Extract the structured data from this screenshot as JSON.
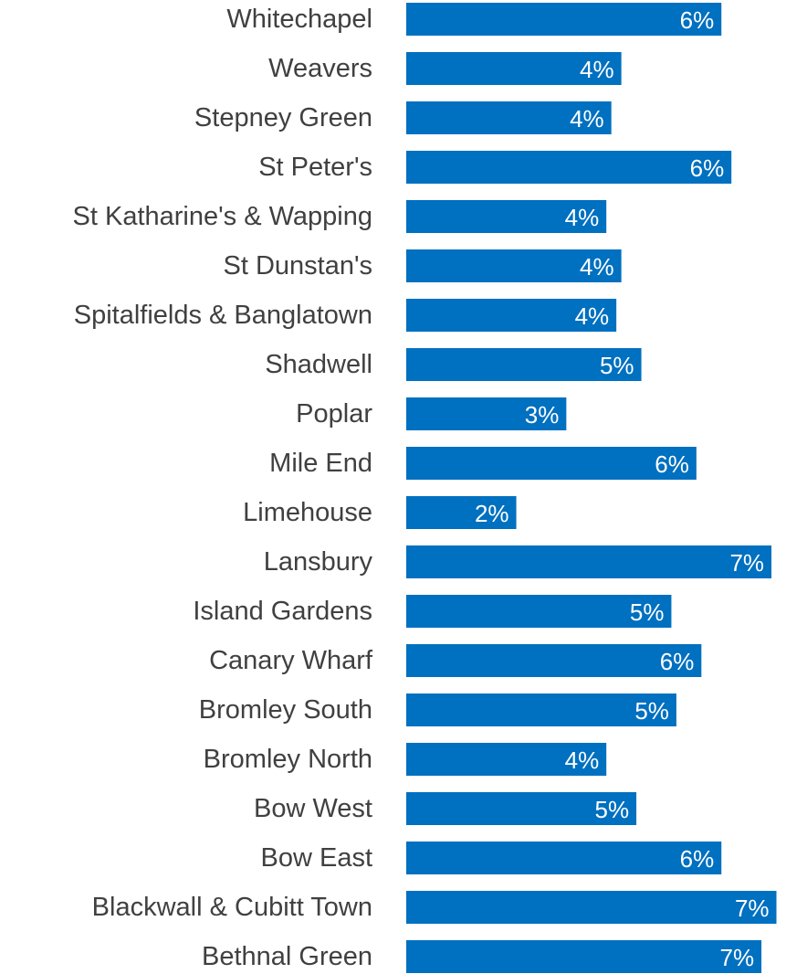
{
  "chart_data": {
    "type": "bar",
    "orientation": "horizontal",
    "title": "",
    "xlabel": "",
    "ylabel": "",
    "grid": false,
    "legend": "none",
    "bar_color": "#0070C0",
    "value_label_color": "#ffffff",
    "category_label_color": "#404040",
    "categories": [
      "Whitechapel",
      "Weavers",
      "Stepney Green",
      "St Peter's",
      "St Katharine's & Wapping",
      "St Dunstan's",
      "Spitalfields & Banglatown",
      "Shadwell",
      "Poplar",
      "Mile End",
      "Limehouse",
      "Lansbury",
      "Island Gardens",
      "Canary Wharf",
      "Bromley South",
      "Bromley North",
      "Bow West",
      "Bow East",
      "Blackwall & Cubitt Town",
      "Bethnal Green"
    ],
    "values": [
      6.3,
      4.3,
      4.1,
      6.5,
      4.0,
      4.3,
      4.2,
      4.7,
      3.2,
      5.8,
      2.2,
      7.3,
      5.3,
      5.9,
      5.4,
      4.0,
      4.6,
      6.3,
      7.4,
      7.1
    ],
    "data_labels": [
      "6%",
      "4%",
      "4%",
      "6%",
      "4%",
      "4%",
      "4%",
      "5%",
      "3%",
      "6%",
      "2%",
      "7%",
      "5%",
      "6%",
      "5%",
      "4%",
      "5%",
      "6%",
      "7%",
      "7%"
    ],
    "xlim": [
      0,
      7.5
    ]
  }
}
